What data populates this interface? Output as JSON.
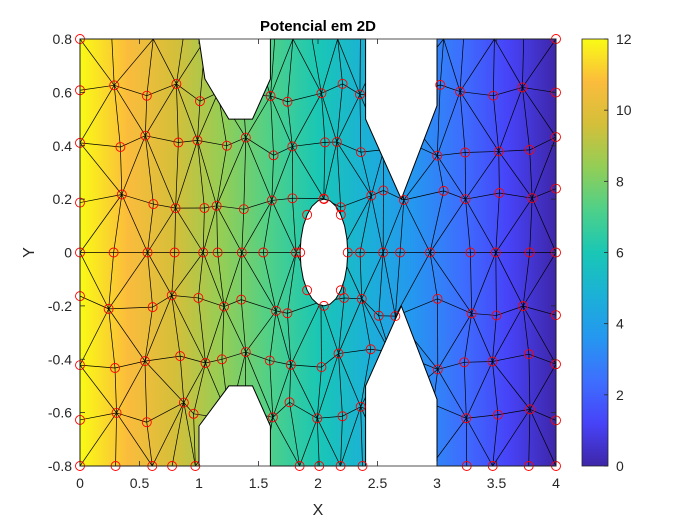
{
  "chart_data": {
    "type": "heatmap",
    "title": "Potencial em 2D",
    "xlabel": "X",
    "ylabel": "Y",
    "xlim": [
      0,
      4
    ],
    "ylim": [
      -0.8,
      0.8
    ],
    "xticks": [
      "0",
      "0.5",
      "1",
      "1.5",
      "2",
      "2.5",
      "3",
      "3.5",
      "4"
    ],
    "yticks": [
      "0.8",
      "0.6",
      "0.4",
      "0.2",
      "0",
      "-0.2",
      "-0.4",
      "-0.6",
      "-0.8"
    ],
    "colorbar": {
      "range": [
        0,
        12
      ],
      "ticks": [
        "0",
        "2",
        "4",
        "6",
        "8",
        "10",
        "12"
      ],
      "colormap": "parula"
    },
    "potential_left_edge": 12,
    "potential_right_edge": 0,
    "geometry": {
      "outer_rect": [
        0,
        4,
        -0.8,
        0.8
      ],
      "notches": [
        {
          "x_range": [
            1.0,
            1.6
          ],
          "depth_edge": 0.8,
          "depth_inner": 0.5
        },
        {
          "x_range": [
            2.4,
            3.0
          ],
          "depth_edge": 0.8,
          "depth_inner": 0.2
        }
      ],
      "hole": {
        "center": [
          2.05,
          0
        ],
        "rx": 0.2,
        "ry": 0.2
      }
    },
    "mesh_color": "#000000",
    "node_marker_color": "#ff0000"
  }
}
